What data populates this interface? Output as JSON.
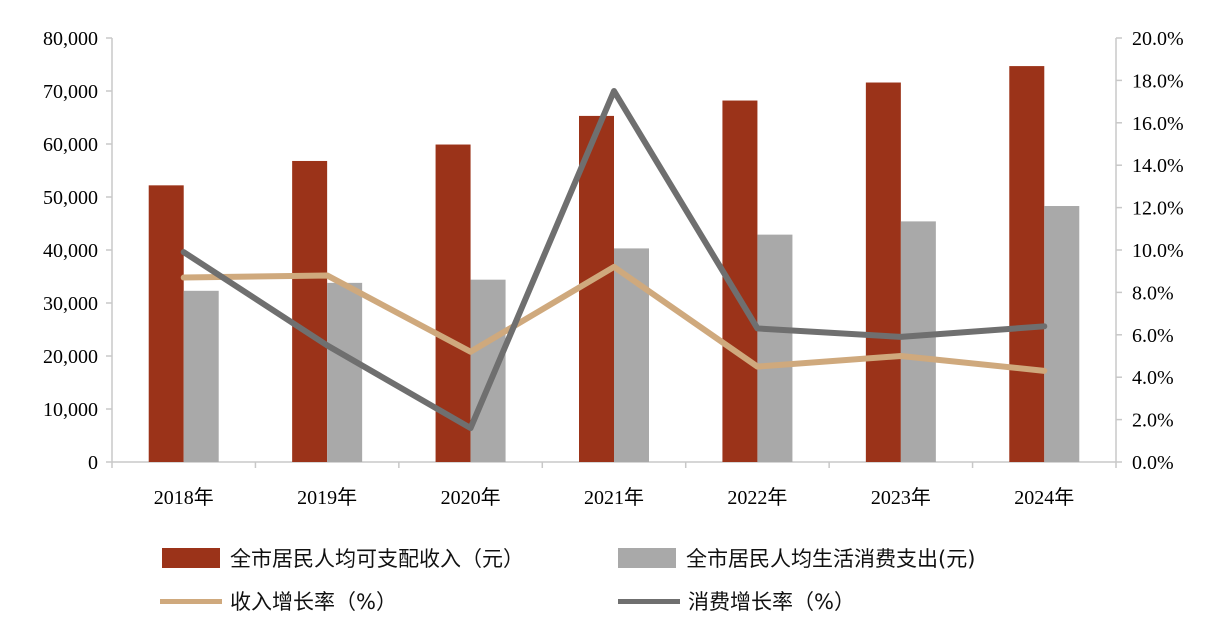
{
  "chart_data": {
    "type": "bar+line",
    "categories": [
      "2018年",
      "2019年",
      "2020年",
      "2021年",
      "2022年",
      "2023年",
      "2024年"
    ],
    "bar_series": [
      {
        "name": "全市居民人均可支配收入（元）",
        "color": "#9b3319",
        "values": [
          52200,
          56800,
          59900,
          65300,
          68200,
          71600,
          74700
        ]
      },
      {
        "name": "全市居民人均生活消费支出(元)",
        "color": "#a9a9a9",
        "values": [
          32300,
          33800,
          34400,
          40300,
          42900,
          45400,
          48300
        ]
      }
    ],
    "line_series": [
      {
        "name": "收入增长率（%）",
        "color": "#cfa97d",
        "values": [
          8.7,
          8.8,
          5.2,
          9.2,
          4.5,
          5.0,
          4.3
        ]
      },
      {
        "name": "消费增长率（%）",
        "color": "#6f6f6f",
        "values": [
          9.9,
          5.5,
          1.6,
          17.5,
          6.3,
          5.9,
          6.4
        ]
      }
    ],
    "y_left": {
      "ylim": [
        0,
        80000
      ],
      "ticks": [
        "0",
        "10,000",
        "20,000",
        "30,000",
        "40,000",
        "50,000",
        "60,000",
        "70,000",
        "80,000"
      ]
    },
    "y_right": {
      "ylim": [
        0,
        20
      ],
      "ticks": [
        "0.0%",
        "2.0%",
        "4.0%",
        "6.0%",
        "8.0%",
        "10.0%",
        "12.0%",
        "14.0%",
        "16.0%",
        "18.0%",
        "20.0%"
      ]
    },
    "legend_position": "bottom"
  }
}
